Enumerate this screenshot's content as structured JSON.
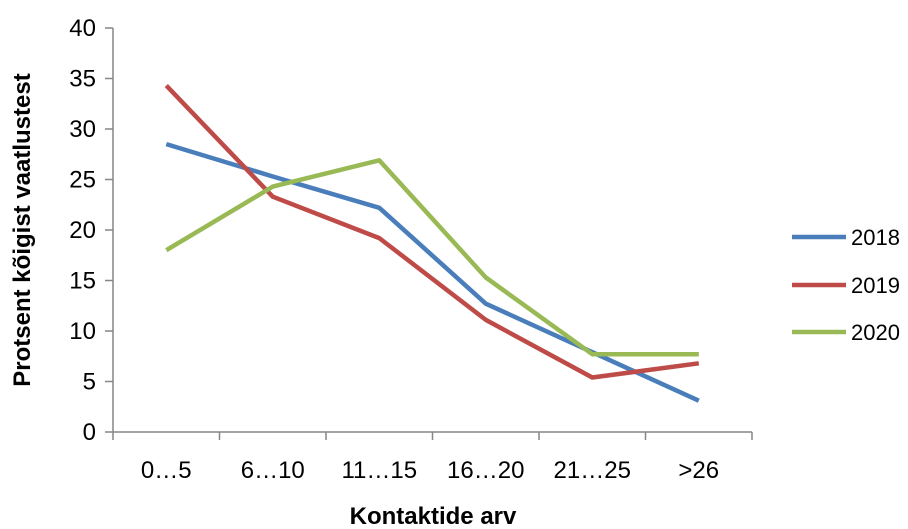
{
  "chart_data": {
    "type": "line",
    "title": "",
    "xlabel": "Kontaktide arv",
    "ylabel": "Protsent kõigist vaatlustest",
    "categories": [
      "0…5",
      "6…10",
      "11…15",
      "16…20",
      "21…25",
      ">26"
    ],
    "ylim": [
      0,
      40
    ],
    "yticks": [
      "0",
      "5",
      "10",
      "15",
      "20",
      "25",
      "30",
      "35",
      "40"
    ],
    "grid": false,
    "legend_position": "right",
    "series": [
      {
        "name": "2018",
        "color": "#4A7EBB",
        "values": [
          28.5,
          25.3,
          22.2,
          12.7,
          7.9,
          3.1
        ]
      },
      {
        "name": "2019",
        "color": "#BE4B48",
        "values": [
          34.3,
          23.3,
          19.2,
          11.1,
          5.4,
          6.8
        ]
      },
      {
        "name": "2020",
        "color": "#98B954",
        "values": [
          18.0,
          24.3,
          26.9,
          15.3,
          7.7,
          7.7
        ]
      }
    ]
  }
}
